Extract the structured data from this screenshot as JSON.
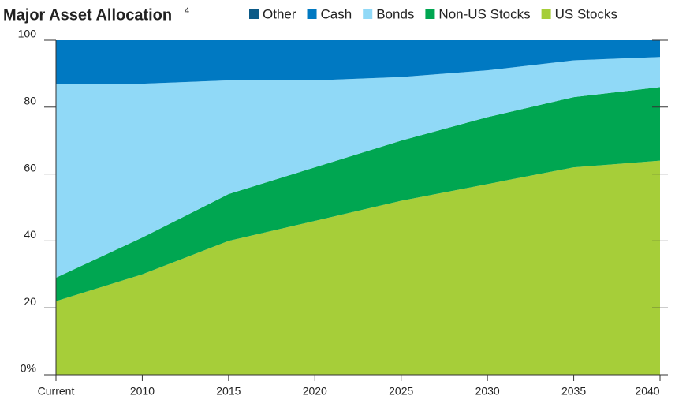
{
  "chart_data": {
    "type": "stacked_area",
    "title": "Major Asset Allocation",
    "title_note": "4",
    "categories": [
      "Current",
      "2010",
      "2015",
      "2020",
      "2025",
      "2030",
      "2035",
      "2040"
    ],
    "series": [
      {
        "name": "Other",
        "color": "#0b5a87",
        "values": [
          0,
          0,
          0,
          0,
          0,
          0,
          0,
          0
        ]
      },
      {
        "name": "Cash",
        "color": "#0079c2",
        "values": [
          13,
          13,
          12,
          12,
          11,
          9,
          6,
          5
        ]
      },
      {
        "name": "Bonds",
        "color": "#90d9f7",
        "values": [
          58,
          46,
          34,
          26,
          19,
          14,
          11,
          9
        ]
      },
      {
        "name": "Non-US Stocks",
        "color": "#00a651",
        "values": [
          7,
          11,
          14,
          16,
          18,
          20,
          21,
          22
        ]
      },
      {
        "name": "US Stocks",
        "color": "#a6ce39",
        "values": [
          22,
          30,
          40,
          46,
          52,
          57,
          62,
          64
        ]
      }
    ],
    "ylim": [
      0,
      100
    ],
    "yticks": [
      {
        "value": 0,
        "label": "0%"
      },
      20,
      40,
      60,
      80,
      100
    ]
  }
}
